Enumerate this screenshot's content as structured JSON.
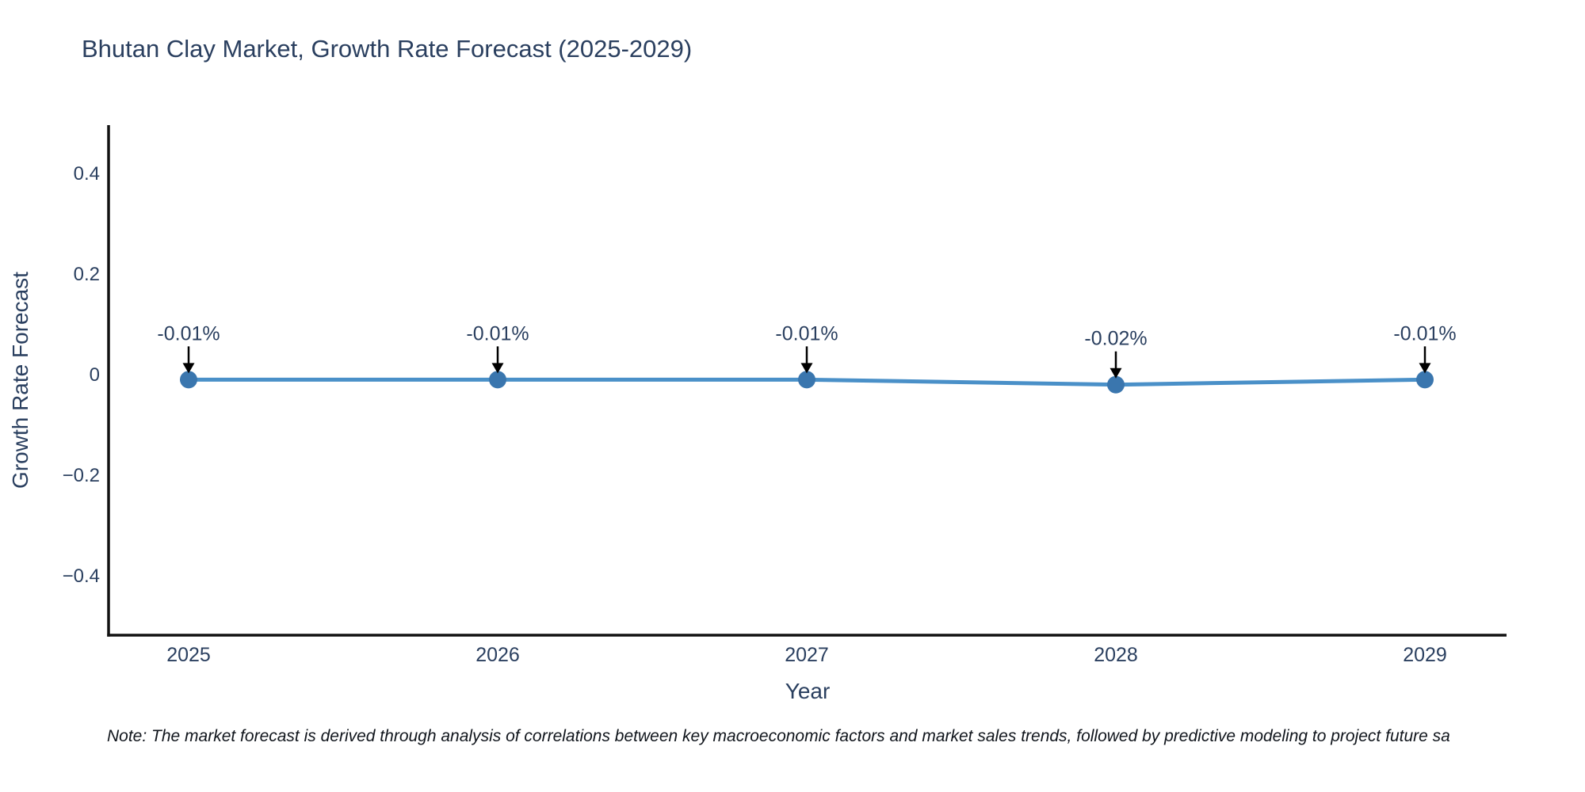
{
  "chart_data": {
    "type": "line",
    "title": "Bhutan Clay Market, Growth Rate Forecast (2025-2029)",
    "xlabel": "Year",
    "ylabel": "Growth Rate Forecast",
    "x": [
      2025,
      2026,
      2027,
      2028,
      2029
    ],
    "x_tick_labels": [
      "2025",
      "2026",
      "2027",
      "2028",
      "2029"
    ],
    "values": [
      -0.01,
      -0.01,
      -0.01,
      -0.02,
      -0.01
    ],
    "point_labels": [
      "-0.01%",
      "-0.01%",
      "-0.01%",
      "-0.02%",
      "-0.01%"
    ],
    "y_ticks": [
      0.4,
      0.2,
      0,
      -0.2,
      -0.4
    ],
    "y_tick_labels": [
      "0.4",
      "0.2",
      "0",
      "−0.2",
      "−0.4"
    ],
    "ylim": [
      -0.52,
      0.5
    ],
    "grid": false,
    "legend": "none",
    "colors": {
      "line": "#4a90c8",
      "marker": "#3a76ae",
      "axis": "#111111",
      "text": "#2a3f5f",
      "annotation_text": "#2a3f5f",
      "arrow": "#000000"
    }
  },
  "note": "Note: The market forecast is derived through analysis of correlations between key macroeconomic factors and market sales trends, followed by predictive modeling to project future sa"
}
